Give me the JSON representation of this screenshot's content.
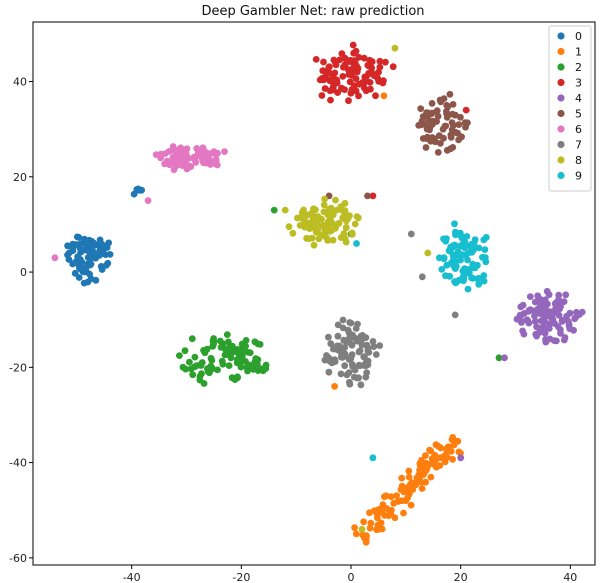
{
  "chart_data": {
    "type": "scatter",
    "title": "Deep Gambler Net: raw prediction",
    "xlabel": "",
    "ylabel": "",
    "xlim": [
      -58,
      44.5
    ],
    "ylim": [
      -61.5,
      52.5
    ],
    "xticks": [
      -40,
      -20,
      0,
      20,
      40
    ],
    "yticks": [
      -60,
      -40,
      -20,
      0,
      20,
      40
    ],
    "grid": false,
    "legend_position": "top-right",
    "series": [
      {
        "name": "0",
        "color": "#1f77b4",
        "clusters": [
          {
            "x_range": [
              -53,
              -43
            ],
            "y_range": [
              -3,
              9
            ],
            "n": 85,
            "seed": 11
          },
          {
            "x_range": [
              -40,
              -37.5
            ],
            "y_range": [
              14.5,
              18.5
            ],
            "n": 6,
            "seed": 12
          }
        ]
      },
      {
        "name": "1",
        "color": "#ff7f0e",
        "clusters": [
          {
            "x_range": [
              2,
              19
            ],
            "y_range": [
              -56,
              -35
            ],
            "n": 120,
            "seed": 21,
            "diag": true
          }
        ],
        "extras": [
          {
            "x": 6,
            "y": 37
          },
          {
            "x": -3,
            "y": -24
          }
        ]
      },
      {
        "name": "2",
        "color": "#2ca02c",
        "clusters": [
          {
            "x_range": [
              -33,
              -13
            ],
            "y_range": [
              -25,
              -12
            ],
            "n": 95,
            "seed": 31
          }
        ],
        "extras": [
          {
            "x": -14,
            "y": 13
          },
          {
            "x": 0,
            "y": 8
          },
          {
            "x": 27,
            "y": -18
          }
        ]
      },
      {
        "name": "3",
        "color": "#d62728",
        "clusters": [
          {
            "x_range": [
              -8,
              9
            ],
            "y_range": [
              35,
              48
            ],
            "n": 95,
            "seed": 41
          }
        ],
        "extras": [
          {
            "x": 21,
            "y": 34
          },
          {
            "x": 4,
            "y": 16
          }
        ]
      },
      {
        "name": "4",
        "color": "#9467bd",
        "clusters": [
          {
            "x_range": [
              29,
              43
            ],
            "y_range": [
              -16,
              -3
            ],
            "n": 105,
            "seed": 51
          }
        ],
        "extras": [
          {
            "x": 20,
            "y": -39
          },
          {
            "x": 28,
            "y": -18
          }
        ]
      },
      {
        "name": "5",
        "color": "#8c564b",
        "clusters": [
          {
            "x_range": [
              11,
              22
            ],
            "y_range": [
              24,
              38
            ],
            "n": 70,
            "seed": 61
          }
        ],
        "extras": [
          {
            "x": -4,
            "y": 16
          },
          {
            "x": 3,
            "y": 16
          }
        ]
      },
      {
        "name": "6",
        "color": "#e377c2",
        "clusters": [
          {
            "x_range": [
              -37,
              -22
            ],
            "y_range": [
              21,
              27
            ],
            "n": 75,
            "seed": 71
          }
        ],
        "extras": [
          {
            "x": -54,
            "y": 3
          },
          {
            "x": -37,
            "y": 15
          }
        ]
      },
      {
        "name": "7",
        "color": "#7f7f7f",
        "clusters": [
          {
            "x_range": [
              -6,
              6
            ],
            "y_range": [
              -25,
              -9
            ],
            "n": 85,
            "seed": 81
          }
        ],
        "extras": [
          {
            "x": 11,
            "y": 8
          },
          {
            "x": 13,
            "y": -1
          },
          {
            "x": 19,
            "y": -9
          }
        ]
      },
      {
        "name": "8",
        "color": "#bcbd22",
        "clusters": [
          {
            "x_range": [
              -12,
              3
            ],
            "y_range": [
              4,
              16
            ],
            "n": 95,
            "seed": 91
          }
        ],
        "extras": [
          {
            "x": 8,
            "y": 47
          },
          {
            "x": -12,
            "y": 13
          },
          {
            "x": 14,
            "y": 4
          },
          {
            "x": 2,
            "y": -54
          }
        ]
      },
      {
        "name": "9",
        "color": "#17becf",
        "clusters": [
          {
            "x_range": [
              15,
              26
            ],
            "y_range": [
              -5,
              11
            ],
            "n": 95,
            "seed": 101
          }
        ],
        "extras": [
          {
            "x": 1,
            "y": 6
          },
          {
            "x": 4,
            "y": -39
          }
        ]
      }
    ]
  }
}
